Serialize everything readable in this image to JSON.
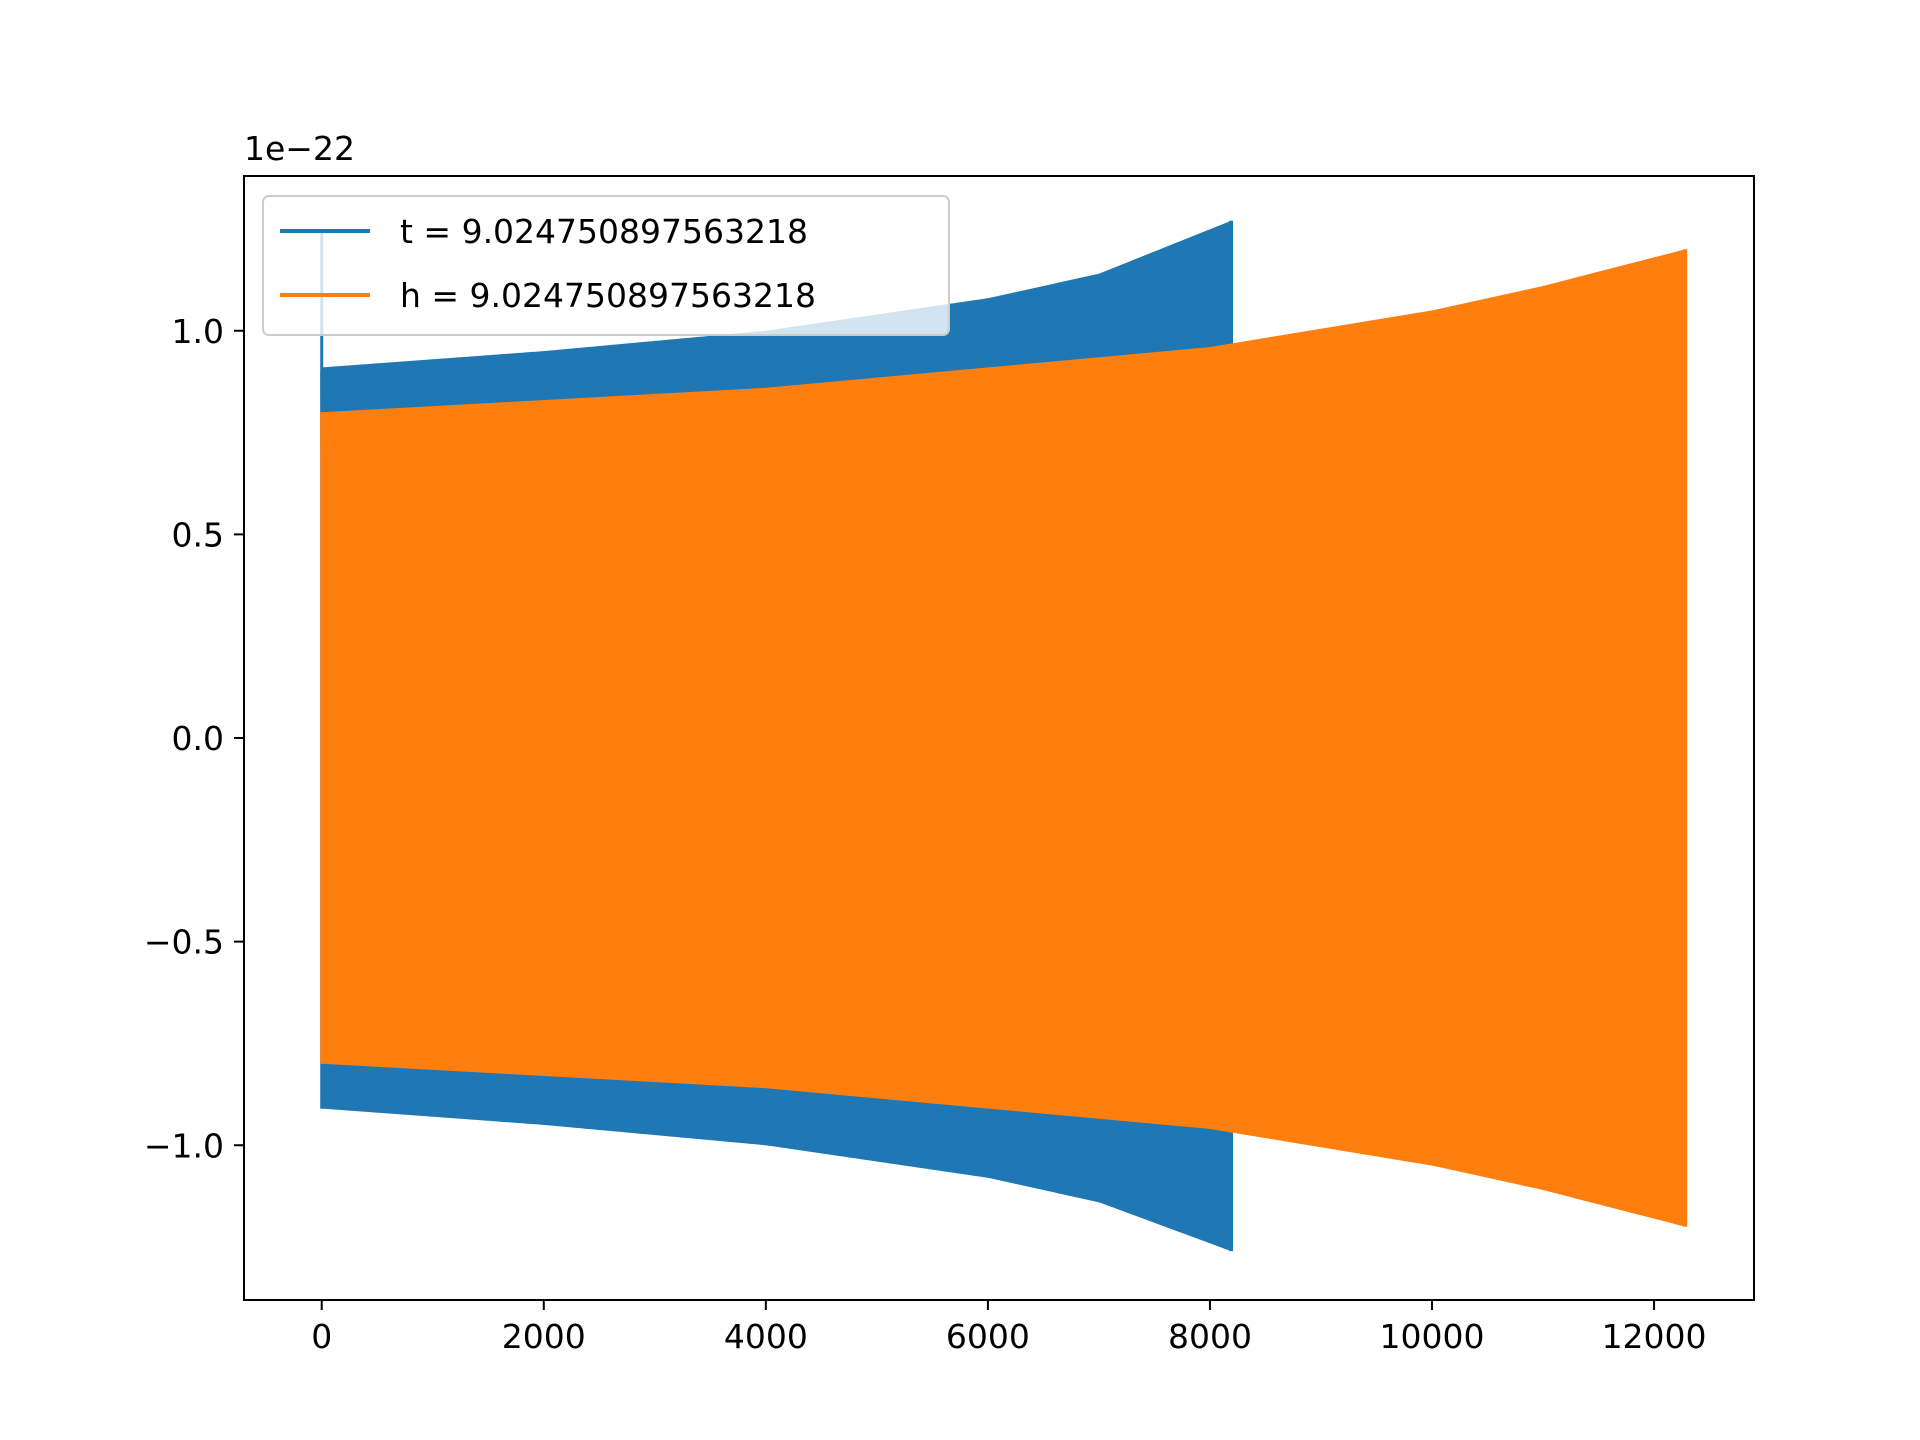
{
  "chart_data": {
    "type": "line",
    "title": "",
    "xlabel": "",
    "ylabel": "",
    "y_offset_text": "1e−22",
    "xlim": [
      -700,
      12900
    ],
    "ylim": [
      -1.38,
      1.38
    ],
    "x_ticks": [
      {
        "value": 0,
        "label": "0"
      },
      {
        "value": 2000,
        "label": "2000"
      },
      {
        "value": 4000,
        "label": "4000"
      },
      {
        "value": 6000,
        "label": "6000"
      },
      {
        "value": 8000,
        "label": "8000"
      },
      {
        "value": 10000,
        "label": "10000"
      },
      {
        "value": 12000,
        "label": "12000"
      }
    ],
    "y_ticks": [
      {
        "value": 1.0,
        "label": "1.0"
      },
      {
        "value": 0.5,
        "label": "0.5"
      },
      {
        "value": 0.0,
        "label": "0.0"
      },
      {
        "value": -0.5,
        "label": "−0.5"
      },
      {
        "value": -1.0,
        "label": "−1.0"
      }
    ],
    "grid": false,
    "legend": {
      "position": "upper-left"
    },
    "series": [
      {
        "name": "t = 9.024750897563218",
        "color": "#1f77b4",
        "x_start": 0,
        "x_end": 8190,
        "initial_spike": 1.25,
        "envelope": [
          {
            "x": 0,
            "upper": 0.91,
            "lower": -0.91
          },
          {
            "x": 2000,
            "upper": 0.95,
            "lower": -0.95
          },
          {
            "x": 4000,
            "upper": 1.0,
            "lower": -1.0
          },
          {
            "x": 6000,
            "upper": 1.08,
            "lower": -1.08
          },
          {
            "x": 7000,
            "upper": 1.14,
            "lower": -1.14
          },
          {
            "x": 8190,
            "upper": 1.27,
            "lower": -1.26
          }
        ]
      },
      {
        "name": "h = 9.024750897563218",
        "color": "#ff7f0e",
        "x_start": 0,
        "x_end": 12280,
        "initial_spike": 0.8,
        "envelope": [
          {
            "x": 0,
            "upper": 0.8,
            "lower": -0.8
          },
          {
            "x": 4000,
            "upper": 0.86,
            "lower": -0.86
          },
          {
            "x": 8000,
            "upper": 0.96,
            "lower": -0.96
          },
          {
            "x": 10000,
            "upper": 1.05,
            "lower": -1.05
          },
          {
            "x": 11000,
            "upper": 1.11,
            "lower": -1.11
          },
          {
            "x": 12280,
            "upper": 1.2,
            "lower": -1.2
          }
        ]
      }
    ]
  }
}
